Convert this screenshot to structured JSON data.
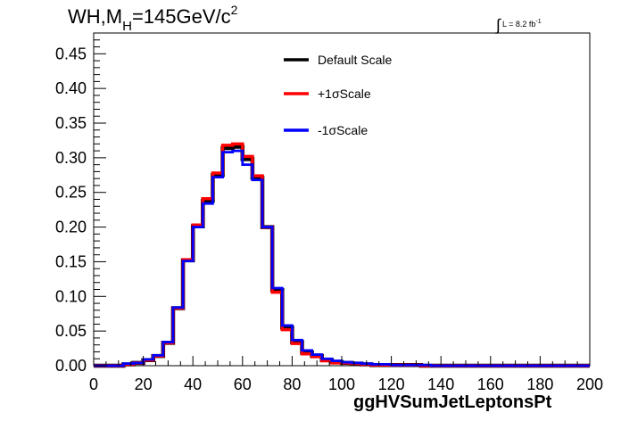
{
  "title": {
    "prefix": "WH,M",
    "subscript": "H",
    "value": "=145GeV/c",
    "superscript": "2"
  },
  "luminosity": {
    "integral": "∫",
    "text": "L = 8.2 fb",
    "superscript": "-1"
  },
  "chart_data": {
    "type": "line",
    "xlabel": "ggHVSumJetLeptonsPt",
    "ylabel": "",
    "xlim": [
      0,
      200
    ],
    "ylim": [
      0,
      0.48
    ],
    "xticks": [
      0,
      20,
      40,
      60,
      80,
      100,
      120,
      140,
      160,
      180,
      200
    ],
    "yticks": [
      0.0,
      0.05,
      0.1,
      0.15,
      0.2,
      0.25,
      0.3,
      0.35,
      0.4,
      0.45
    ],
    "bin_edges": [
      0,
      4,
      8,
      12,
      16,
      20,
      24,
      28,
      32,
      36,
      40,
      44,
      48,
      52,
      56,
      60,
      64,
      68,
      72,
      76,
      80,
      84,
      88,
      92,
      96,
      100,
      104,
      108,
      112,
      116,
      120,
      124,
      128,
      132,
      136,
      140,
      144,
      148,
      152,
      156,
      160,
      164,
      168,
      172,
      176,
      180,
      184,
      188,
      192,
      196,
      200
    ],
    "legend_position": "top-center",
    "series": [
      {
        "name": "Default Scale",
        "color": "#000000",
        "values": [
          0,
          0,
          0,
          0.002,
          0.004,
          0.008,
          0.014,
          0.033,
          0.083,
          0.152,
          0.201,
          0.238,
          0.275,
          0.314,
          0.316,
          0.298,
          0.271,
          0.2,
          0.109,
          0.055,
          0.034,
          0.019,
          0.014,
          0.008,
          0.005,
          0.004,
          0.003,
          0.002,
          0.001,
          0.001,
          0.001,
          0.001,
          0.001,
          0,
          0,
          0,
          0,
          0,
          0,
          0,
          0,
          0,
          0,
          0,
          0,
          0,
          0,
          0,
          0,
          0
        ]
      },
      {
        "name": "+1σScale",
        "color": "#ff0000",
        "values": [
          0,
          0,
          0,
          0.002,
          0.004,
          0.008,
          0.014,
          0.033,
          0.083,
          0.153,
          0.203,
          0.241,
          0.278,
          0.318,
          0.32,
          0.302,
          0.274,
          0.2,
          0.106,
          0.052,
          0.032,
          0.017,
          0.013,
          0.007,
          0.004,
          0.004,
          0.003,
          0.002,
          0.001,
          0.001,
          0.001,
          0.001,
          0.001,
          0,
          0,
          0,
          0,
          0,
          0,
          0,
          0,
          0,
          0,
          0,
          0,
          0,
          0,
          0,
          0,
          0
        ]
      },
      {
        "name": "-1σScale",
        "color": "#0000ff",
        "values": [
          0,
          0,
          0,
          0.003,
          0.004,
          0.009,
          0.015,
          0.034,
          0.084,
          0.151,
          0.2,
          0.234,
          0.272,
          0.308,
          0.31,
          0.29,
          0.268,
          0.2,
          0.112,
          0.058,
          0.037,
          0.022,
          0.016,
          0.01,
          0.007,
          0.005,
          0.004,
          0.003,
          0.002,
          0.002,
          0.001,
          0.001,
          0.001,
          0.001,
          0,
          0,
          0,
          0,
          0,
          0,
          0,
          0,
          0,
          0,
          0,
          0,
          0,
          0,
          0,
          0
        ]
      }
    ]
  }
}
